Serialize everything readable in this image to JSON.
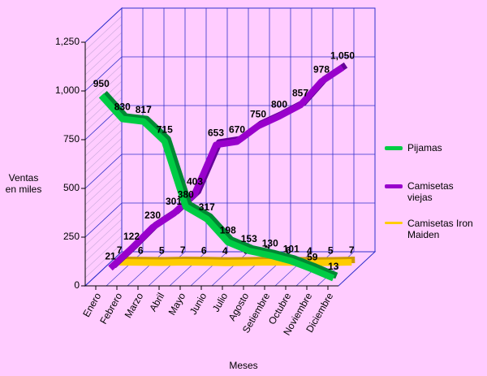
{
  "chart_data": {
    "type": "line",
    "x_axis_label": "Meses",
    "y_axis_label": "Ventas en miles",
    "categories": [
      "Enero",
      "Febrero",
      "Marzo",
      "Abril",
      "Mayo",
      "Junio",
      "Julio",
      "Agosto",
      "Setiembre",
      "Octubre",
      "Noviembre",
      "Diciembre"
    ],
    "series": [
      {
        "name": "Pijamas",
        "color": "#00cc44",
        "values": [
          950,
          830,
          817,
          715,
          380,
          317,
          198,
          153,
          130,
          101,
          59,
          13
        ]
      },
      {
        "name": "Camisetas viejas",
        "color": "#9900cc",
        "values": [
          21,
          122,
          230,
          301,
          403,
          653,
          670,
          750,
          800,
          857,
          978,
          1050
        ],
        "value_labels": [
          "21",
          "122",
          "230",
          "301",
          "403",
          "653",
          "670",
          "750",
          "800",
          "857",
          "978",
          "1,050"
        ]
      },
      {
        "name": "Camisetas Iron Maiden",
        "color": "#ffcc00",
        "values": [
          7,
          6,
          5,
          7,
          6,
          4,
          5,
          7,
          6,
          4,
          5,
          7
        ]
      }
    ],
    "ylim": [
      0,
      1250
    ],
    "yticks": [
      0,
      250,
      500,
      750,
      {
        "value": 1000,
        "label": "1,000"
      },
      {
        "value": 1250,
        "label": "1,250"
      }
    ],
    "grid": true,
    "legend": "right"
  }
}
